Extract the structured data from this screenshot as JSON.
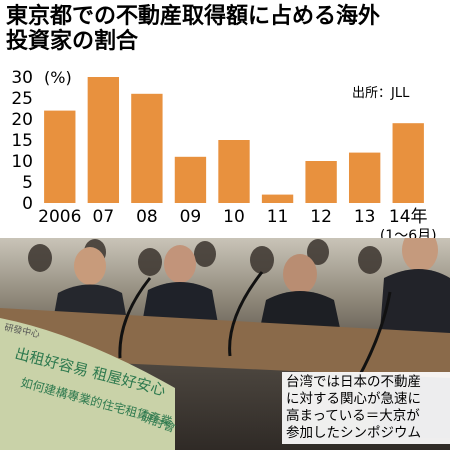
{
  "title": {
    "line1": "東京都での不動産取得額に占める海外",
    "line2": "投資家の割合"
  },
  "unit_label": "(%)",
  "source_label": "出所：JLL",
  "chart_data": {
    "type": "bar",
    "title": "東京都での不動産取得額に占める海外投資家の割合",
    "categories": [
      "2006",
      "07",
      "08",
      "09",
      "10",
      "11",
      "12",
      "13",
      "14年"
    ],
    "category_sublabels": [
      "",
      "",
      "",
      "",
      "",
      "",
      "",
      "",
      "(1〜6月)"
    ],
    "values": [
      22,
      30,
      26,
      11,
      15,
      2,
      10,
      12,
      19
    ],
    "ylim": [
      0,
      30
    ],
    "yticks": [
      0,
      5,
      10,
      15,
      20,
      25,
      30
    ],
    "xlabel": "",
    "ylabel": "(%)",
    "grid": false,
    "bar_color": "#e8913e"
  },
  "photo": {
    "banner_line1": "出租好容易 租屋好安心",
    "banner_line2": "如何建構專業的住宅租賃產業",
    "banner_right": "研討會",
    "banner_small": "研發中心"
  },
  "caption": {
    "line1": "台湾では日本の不動産",
    "line2": "に対する関心が急速に",
    "line3": "高まっている＝大京が",
    "line4": "参加したシンポジウム"
  }
}
